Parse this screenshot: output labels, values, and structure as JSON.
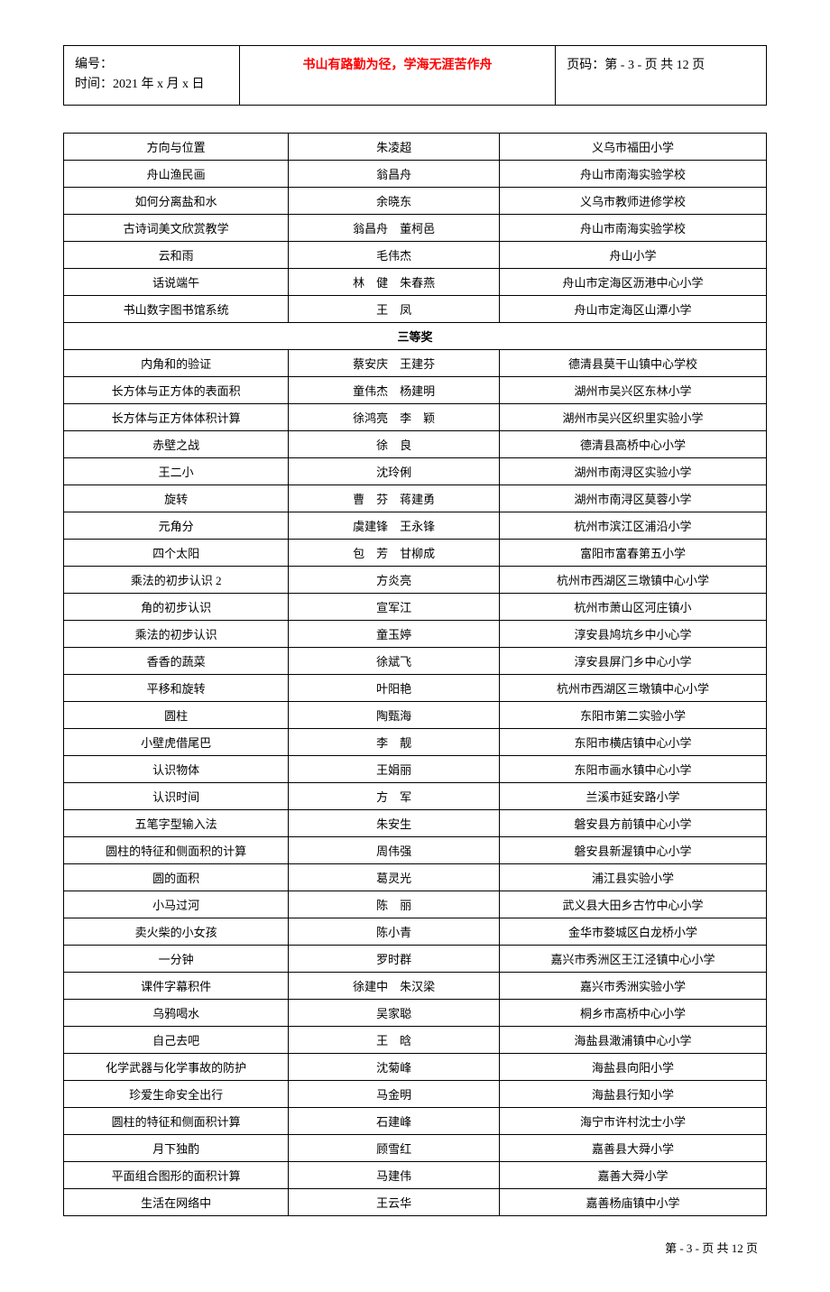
{
  "header": {
    "id_label": "编号：",
    "time_label": "时间：2021 年 x 月 x 日",
    "motto": "书山有路勤为径，学海无涯苦作舟",
    "page_label": "页码：第 - 3 - 页 共 12 页"
  },
  "section1_rows": [
    {
      "c1": "方向与位置",
      "c2": "朱凌超",
      "c3": "义乌市福田小学"
    },
    {
      "c1": "舟山渔民画",
      "c2": "翁昌舟",
      "c3": "舟山市南海实验学校"
    },
    {
      "c1": "如何分离盐和水",
      "c2": "余晓东",
      "c3": "义乌市教师进修学校"
    },
    {
      "c1": "古诗词美文欣赏教学",
      "c2": "翁昌舟　董柯邑",
      "c3": "舟山市南海实验学校"
    },
    {
      "c1": "云和雨",
      "c2": "毛伟杰",
      "c3": "舟山小学"
    },
    {
      "c1": "话说端午",
      "c2": "林　健　朱春燕",
      "c3": "舟山市定海区沥港中心小学"
    },
    {
      "c1": "书山数字图书馆系统",
      "c2": "王　凤",
      "c3": "舟山市定海区山潭小学"
    }
  ],
  "section2_title": "三等奖",
  "section2_rows": [
    {
      "c1": "内角和的验证",
      "c2": "蔡安庆　王建芬",
      "c3": "德清县莫干山镇中心学校"
    },
    {
      "c1": "长方体与正方体的表面积",
      "c2": "童伟杰　杨建明",
      "c3": "湖州市吴兴区东林小学"
    },
    {
      "c1": "长方体与正方体体积计算",
      "c2": "徐鸿亮　李　颖",
      "c3": "湖州市吴兴区织里实验小学"
    },
    {
      "c1": "赤壁之战",
      "c2": "徐　良",
      "c3": "德清县高桥中心小学"
    },
    {
      "c1": "王二小",
      "c2": "沈玲俐",
      "c3": "湖州市南浔区实验小学"
    },
    {
      "c1": "旋转",
      "c2": "曹　芬　蒋建勇",
      "c3": "湖州市南浔区莫蓉小学"
    },
    {
      "c1": "元角分",
      "c2": "虞建锋　王永锋",
      "c3": "杭州市滨江区浦沿小学"
    },
    {
      "c1": "四个太阳",
      "c2": "包　芳　甘柳成",
      "c3": "富阳市富春第五小学"
    },
    {
      "c1": "乘法的初步认识 2",
      "c2": "方炎亮",
      "c3": "杭州市西湖区三墩镇中心小学"
    },
    {
      "c1": "角的初步认识",
      "c2": "宣军江",
      "c3": "杭州市萧山区河庄镇小"
    },
    {
      "c1": "乘法的初步认识",
      "c2": "童玉婷",
      "c3": "淳安县鸠坑乡中小心学"
    },
    {
      "c1": "香香的蔬菜",
      "c2": "徐斌飞",
      "c3": "淳安县屏门乡中心小学"
    },
    {
      "c1": "平移和旋转",
      "c2": "叶阳艳",
      "c3": "杭州市西湖区三墩镇中心小学"
    },
    {
      "c1": "圆柱",
      "c2": "陶甄海",
      "c3": "东阳市第二实验小学"
    },
    {
      "c1": "小壁虎借尾巴",
      "c2": "李　靓",
      "c3": "东阳市横店镇中心小学"
    },
    {
      "c1": "认识物体",
      "c2": "王娟丽",
      "c3": "东阳市画水镇中心小学"
    },
    {
      "c1": "认识时间",
      "c2": "方　军",
      "c3": "兰溪市延安路小学"
    },
    {
      "c1": "五笔字型输入法",
      "c2": "朱安生",
      "c3": "磐安县方前镇中心小学"
    },
    {
      "c1": "圆柱的特征和侧面积的计算",
      "c2": "周伟强",
      "c3": "磐安县新渥镇中心小学"
    },
    {
      "c1": "圆的面积",
      "c2": "葛灵光",
      "c3": "浦江县实验小学"
    },
    {
      "c1": "小马过河",
      "c2": "陈　丽",
      "c3": "武义县大田乡古竹中心小学"
    },
    {
      "c1": "卖火柴的小女孩",
      "c2": "陈小青",
      "c3": "金华市婺城区白龙桥小学"
    },
    {
      "c1": "一分钟",
      "c2": "罗时群",
      "c3": "嘉兴市秀洲区王江泾镇中心小学"
    },
    {
      "c1": "课件字幕积件",
      "c2": "徐建中　朱汉梁",
      "c3": "嘉兴市秀洲实验小学"
    },
    {
      "c1": "乌鸦喝水",
      "c2": "吴家聪",
      "c3": "桐乡市高桥中心小学"
    },
    {
      "c1": "自己去吧",
      "c2": "王　晗",
      "c3": "海盐县澉浦镇中心小学"
    },
    {
      "c1": "化学武器与化学事故的防护",
      "c2": "沈菊峰",
      "c3": "海盐县向阳小学"
    },
    {
      "c1": "珍爱生命安全出行",
      "c2": "马金明",
      "c3": "海盐县行知小学"
    },
    {
      "c1": "圆柱的特征和侧面积计算",
      "c2": "石建峰",
      "c3": "海宁市许村沈士小学"
    },
    {
      "c1": "月下独酌",
      "c2": "顾雪红",
      "c3": "嘉善县大舜小学"
    },
    {
      "c1": "平面组合图形的面积计算",
      "c2": "马建伟",
      "c3": "嘉善大舜小学"
    },
    {
      "c1": "生活在网络中",
      "c2": "王云华",
      "c3": "嘉善杨庙镇中小学"
    }
  ],
  "footer": "第 - 3 - 页 共 12 页",
  "colors": {
    "text": "#000000",
    "accent": "#ff0000",
    "background": "#ffffff",
    "border": "#000000"
  },
  "table_meta": {
    "columns": 3,
    "col_widths": [
      "32%",
      "30%",
      "38%"
    ],
    "font_size": 13
  }
}
